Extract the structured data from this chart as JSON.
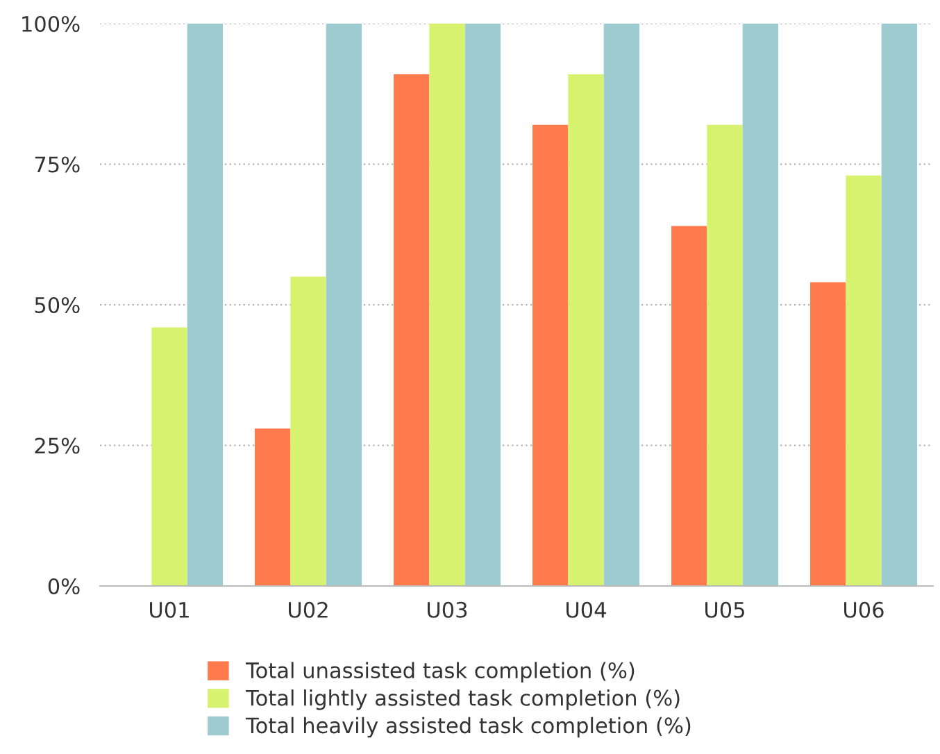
{
  "chart_data": {
    "type": "bar",
    "categories": [
      "U01",
      "U02",
      "U03",
      "U04",
      "U05",
      "U06"
    ],
    "series": [
      {
        "name": "Total unassisted task completion (%)",
        "color": "#ff7a4d",
        "values": [
          0,
          28,
          91,
          82,
          64,
          54
        ]
      },
      {
        "name": "Total lightly assisted task completion (%)",
        "color": "#d7f26e",
        "values": [
          46,
          55,
          100,
          91,
          82,
          73
        ]
      },
      {
        "name": "Total heavily assisted task completion (%)",
        "color": "#9ecbd0",
        "values": [
          100,
          100,
          100,
          100,
          100,
          100
        ]
      }
    ],
    "ylim": [
      0,
      100
    ],
    "yticks": [
      {
        "value": 0,
        "label": "0%"
      },
      {
        "value": 25,
        "label": "25%"
      },
      {
        "value": 50,
        "label": "50%"
      },
      {
        "value": 75,
        "label": "75%"
      },
      {
        "value": 100,
        "label": "100%"
      }
    ],
    "grid": "y",
    "legend": "bottom"
  }
}
